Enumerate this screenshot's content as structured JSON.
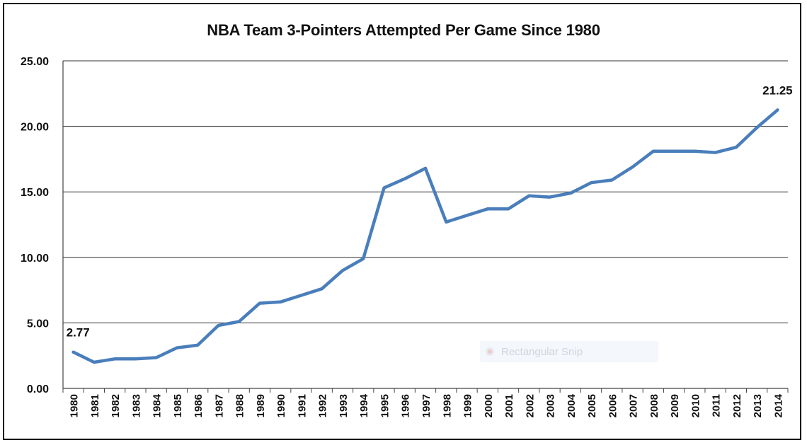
{
  "chart_data": {
    "type": "line",
    "title": "NBA Team 3-Pointers Attempted Per Game Since 1980",
    "xlabel": "",
    "ylabel": "",
    "categories": [
      "1980",
      "1981",
      "1982",
      "1983",
      "1984",
      "1985",
      "1986",
      "1987",
      "1988",
      "1989",
      "1990",
      "1991",
      "1992",
      "1993",
      "1994",
      "1995",
      "1996",
      "1997",
      "1998",
      "1999",
      "2000",
      "2001",
      "2002",
      "2003",
      "2004",
      "2005",
      "2006",
      "2007",
      "2008",
      "2009",
      "2010",
      "2011",
      "2012",
      "2013",
      "2014"
    ],
    "values": [
      2.77,
      2.0,
      2.25,
      2.25,
      2.35,
      3.1,
      3.3,
      4.8,
      5.1,
      6.5,
      6.6,
      7.1,
      7.6,
      9.0,
      9.9,
      15.3,
      16.0,
      16.8,
      12.7,
      13.2,
      13.7,
      13.7,
      14.7,
      14.6,
      14.9,
      15.7,
      15.9,
      16.9,
      18.1,
      18.1,
      18.1,
      18.0,
      18.4,
      19.9,
      21.25
    ],
    "ylim": [
      0,
      25
    ],
    "yticks": [
      "0.00",
      "5.00",
      "10.00",
      "15.00",
      "20.00",
      "25.00"
    ],
    "grid": true,
    "line_color": "#4a7ebb",
    "data_labels": [
      {
        "index": 0,
        "text": "2.77"
      },
      {
        "index": 34,
        "text": "21.25"
      }
    ]
  },
  "overlay": {
    "snip_label": "Rectangular Snip"
  }
}
